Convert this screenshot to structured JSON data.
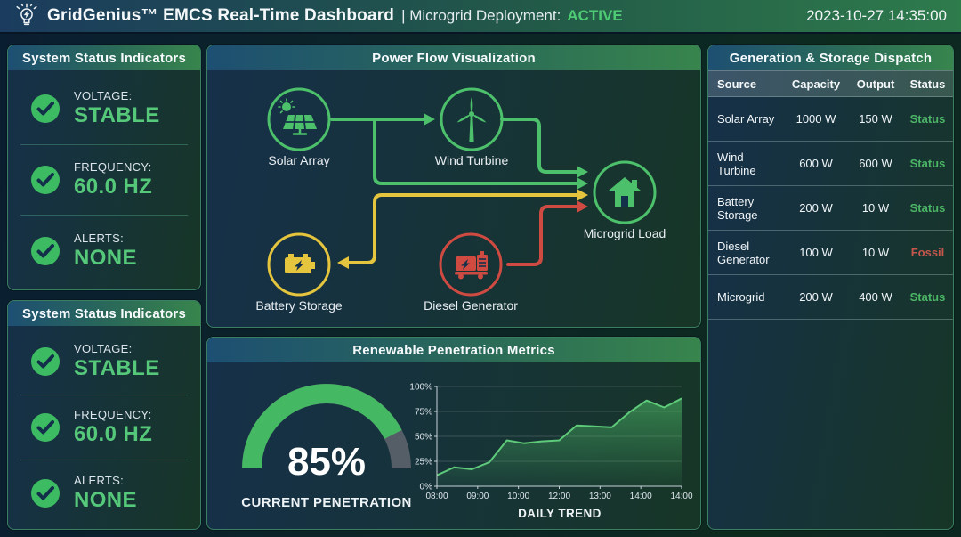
{
  "header": {
    "title": "GridGenius™ EMCS Real-Time Dashboard",
    "subtitle": "| Microgrid Deployment:",
    "status": "ACTIVE",
    "timestamp": "2023-10-27 14:35:00"
  },
  "status_panels": [
    {
      "title": "System Status Indicators",
      "items": [
        {
          "label": "VOLTAGE:",
          "value": "STABLE"
        },
        {
          "label": "FREQUENCY:",
          "value": "60.0 HZ"
        },
        {
          "label": "ALERTS:",
          "value": "NONE"
        }
      ]
    },
    {
      "title": "System Status Indicators",
      "items": [
        {
          "label": "VOLTAGE:",
          "value": "STABLE"
        },
        {
          "label": "FREQUENCY:",
          "value": "60.0 HZ"
        },
        {
          "label": "ALERTS:",
          "value": "NONE"
        }
      ]
    }
  ],
  "power_flow": {
    "title": "Power Flow Visualization",
    "nodes": [
      {
        "id": "solar",
        "label": "Solar Array",
        "color": "#4cc06a"
      },
      {
        "id": "wind",
        "label": "Wind Turbine",
        "color": "#4cc06a"
      },
      {
        "id": "load",
        "label": "Microgrid Load",
        "color": "#4cc06a"
      },
      {
        "id": "battery",
        "label": "Battery Storage",
        "color": "#e5c53d"
      },
      {
        "id": "diesel",
        "label": "Diesel Generator",
        "color": "#cf4b42"
      }
    ]
  },
  "metrics": {
    "title": "Renewable Penetration Metrics",
    "gauge": {
      "value": 85,
      "display": "85%",
      "caption": "CURRENT PENETRATION",
      "fill_color": "#44b862",
      "track_color": "#555e66"
    }
  },
  "chart_data": {
    "type": "area",
    "title": "Renewable Penetration Metrics",
    "xlabel": "DAILY TREND",
    "x_tick_labels": [
      "08:00",
      "09:00",
      "10:00",
      "12:00",
      "13:00",
      "14:00",
      "14:00"
    ],
    "values": [
      11,
      19,
      17,
      24,
      46,
      43,
      45,
      46,
      61,
      60,
      59,
      74,
      86,
      79,
      88
    ],
    "y_tick_labels": [
      "0%",
      "25%",
      "50%",
      "75%",
      "100%"
    ],
    "ylim": [
      0,
      100
    ],
    "grid": true,
    "line_color": "#5ecb7a",
    "legend": null
  },
  "dispatch": {
    "title": "Generation & Storage Dispatch",
    "columns": [
      "Source",
      "Capacity",
      "Output",
      "Status"
    ],
    "rows": [
      {
        "source": "Solar Array",
        "capacity": "1000 W",
        "output": "150 W",
        "status": "Status",
        "status_type": "ok"
      },
      {
        "source": "Wind Turbine",
        "capacity": "600 W",
        "output": "600 W",
        "status": "Status",
        "status_type": "ok"
      },
      {
        "source": "Battery Storage",
        "capacity": "200 W",
        "output": "10 W",
        "status": "Status",
        "status_type": "ok"
      },
      {
        "source": "Diesel Generator",
        "capacity": "100 W",
        "output": "10 W",
        "status": "Fossil",
        "status_type": "fossil"
      },
      {
        "source": "Microgrid",
        "capacity": "200 W",
        "output": "400 W",
        "status": "Status",
        "status_type": "ok"
      }
    ]
  },
  "colors": {
    "accent_green": "#4cc06a",
    "value_green": "#55c87a",
    "warning_yellow": "#e5c53d",
    "alert_red": "#cf4b42",
    "active_green": "#4ecb74"
  }
}
